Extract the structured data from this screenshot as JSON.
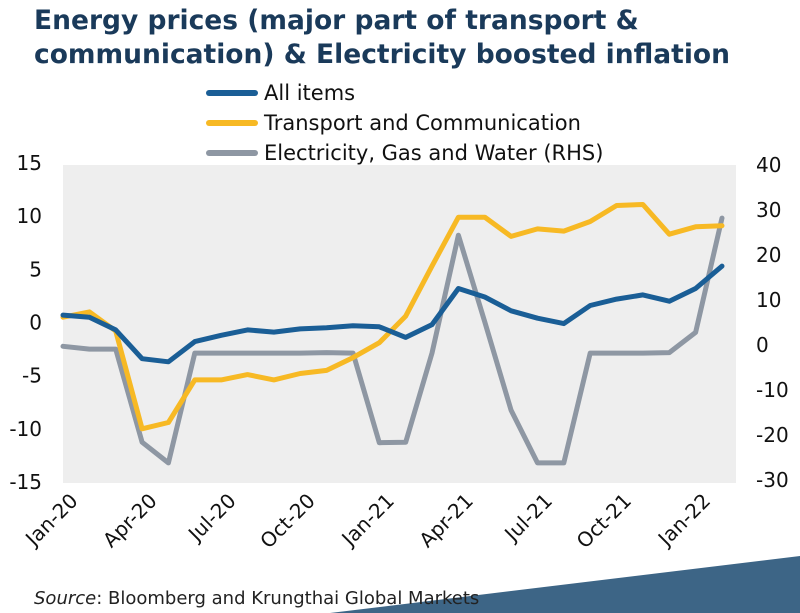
{
  "page": {
    "title_line1": "Energy prices (major part of transport &",
    "title_line2": "communication) & Electricity boosted inflation",
    "source_prefix": "Source",
    "source_text": ": Bloomberg and Krungthai Global Markets"
  },
  "colors": {
    "all_items": "#1a5e96",
    "transport": "#f7b924",
    "electricity": "#8e97a3",
    "plot_bg": "#eeeeee",
    "title": "#1a3a5a",
    "corner": "#3d6586"
  },
  "chart_data": {
    "type": "line",
    "x": [
      "Jan-20",
      "Feb-20",
      "Mar-20",
      "Apr-20",
      "May-20",
      "Jun-20",
      "Jul-20",
      "Aug-20",
      "Sep-20",
      "Oct-20",
      "Nov-20",
      "Dec-20",
      "Jan-21",
      "Feb-21",
      "Mar-21",
      "Apr-21",
      "May-21",
      "Jun-21",
      "Jul-21",
      "Aug-21",
      "Sep-21",
      "Oct-21",
      "Nov-21",
      "Dec-21",
      "Jan-22",
      "Feb-22"
    ],
    "x_tick_labels": [
      "Jan-20",
      "Apr-20",
      "Jul-20",
      "Oct-20",
      "Jan-21",
      "Apr-21",
      "Jul-21",
      "Oct-21",
      "Jan-22"
    ],
    "y_left": {
      "ylim": [
        -15,
        15
      ],
      "ticks": [
        "15",
        "10",
        "5",
        "0",
        "-5",
        "-10",
        "-15"
      ]
    },
    "y_right": {
      "ylim": [
        -30,
        40
      ],
      "ticks": [
        "40",
        "30",
        "20",
        "10",
        "0",
        "-10",
        "-20",
        "-30"
      ]
    },
    "grid": false,
    "legend_position": "top",
    "series": [
      {
        "name": "All items",
        "axis": "left",
        "values": [
          0.7,
          0.5,
          -0.7,
          -3.4,
          -3.7,
          -1.8,
          -1.2,
          -0.7,
          -0.9,
          -0.6,
          -0.5,
          -0.3,
          -0.4,
          -1.4,
          -0.2,
          3.2,
          2.4,
          1.1,
          0.4,
          -0.1,
          1.6,
          2.2,
          2.6,
          2.0,
          3.2,
          5.3
        ]
      },
      {
        "name": "Transport and Communication",
        "axis": "left",
        "values": [
          0.5,
          1.0,
          -0.8,
          -10.0,
          -9.4,
          -5.4,
          -5.4,
          -4.9,
          -5.4,
          -4.8,
          -4.5,
          -3.3,
          -1.9,
          0.6,
          5.3,
          9.9,
          9.9,
          8.1,
          8.8,
          8.6,
          9.5,
          11.0,
          11.1,
          8.3,
          9.0,
          9.1
        ]
      },
      {
        "name": "Electricity, Gas and Water (RHS)",
        "axis": "right",
        "values": [
          -0.3,
          -0.9,
          -0.9,
          -21.6,
          -26.2,
          -1.8,
          -1.8,
          -1.8,
          -1.8,
          -1.8,
          -1.7,
          -1.8,
          -21.7,
          -21.6,
          -1.8,
          24.4,
          5.1,
          -14.5,
          -26.2,
          -26.2,
          -1.8,
          -1.8,
          -1.8,
          -1.7,
          2.8,
          28.2
        ]
      }
    ]
  }
}
